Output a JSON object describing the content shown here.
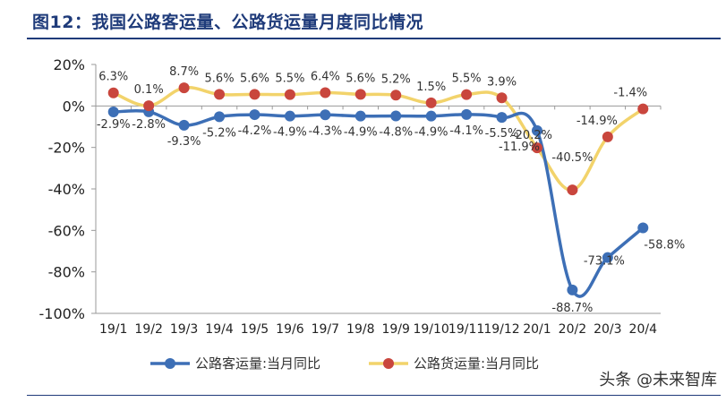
{
  "figure": {
    "title": "图12：我国公路客运量、公路货运量月度同比情况",
    "watermark": "头条 @未来智库"
  },
  "chart_data": {
    "type": "line",
    "title": "图12：我国公路客运量、公路货运量月度同比情况",
    "xlabel": "",
    "ylabel": "",
    "categories": [
      "19/1",
      "19/2",
      "19/3",
      "19/4",
      "19/5",
      "19/6",
      "19/7",
      "19/8",
      "19/9",
      "19/10",
      "19/11",
      "19/12",
      "20/1",
      "20/2",
      "20/3",
      "20/4"
    ],
    "ylim": [
      -100,
      20
    ],
    "yticks": [
      20,
      0,
      -20,
      -40,
      -60,
      -80,
      -100
    ],
    "ytick_labels": [
      "20%",
      "0%",
      "-20%",
      "-40%",
      "-60%",
      "-80%",
      "-100%"
    ],
    "grid": false,
    "legend_position": "bottom",
    "series": [
      {
        "name": "公路客运量:当月同比",
        "color": "#3d6fb6",
        "values": [
          -2.9,
          -2.8,
          -9.3,
          -5.2,
          -4.2,
          -4.9,
          -4.3,
          -4.9,
          -4.8,
          -4.9,
          -4.1,
          -5.5,
          -11.9,
          -88.7,
          -73.1,
          -58.8
        ],
        "labels": [
          "-2.9%",
          "-2.8%",
          "-9.3%",
          "-5.2%",
          "-4.2%",
          "-4.9%",
          "-4.3%",
          "-4.9%",
          "-4.8%",
          "-4.9%",
          "-4.1%",
          "-5.5%",
          "-11.9%",
          "-88.7%",
          "-73.1%",
          "-58.8%"
        ]
      },
      {
        "name": "公路货运量:当月同比",
        "color": "#f2d36b",
        "marker_color": "#c9463d",
        "values": [
          6.3,
          0.1,
          8.7,
          5.6,
          5.6,
          5.5,
          6.4,
          5.6,
          5.2,
          1.5,
          5.5,
          3.9,
          -20.2,
          -40.5,
          -14.9,
          -1.4
        ],
        "labels": [
          "6.3%",
          "0.1%",
          "8.7%",
          "5.6%",
          "5.6%",
          "5.5%",
          "6.4%",
          "5.6%",
          "5.2%",
          "1.5%",
          "5.5%",
          "3.9%",
          "-20.2%",
          "-40.5%",
          "-14.9%",
          "-1.4%"
        ]
      }
    ]
  }
}
